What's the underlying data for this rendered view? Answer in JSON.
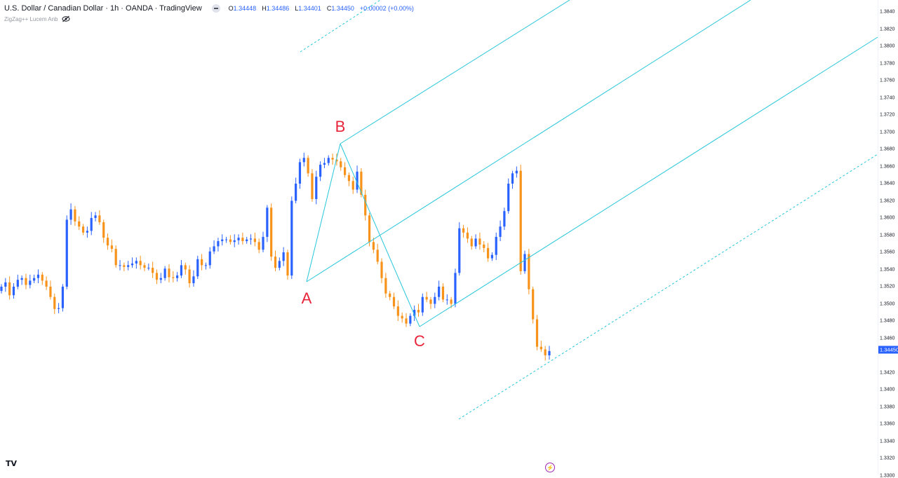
{
  "legend": {
    "title": "U.S. Dollar / Canadian Dollar · 1h · OANDA · TradingView",
    "open_key": "O",
    "open": "1.34448",
    "high_key": "H",
    "high": "1.34486",
    "low_key": "L",
    "low": "1.34401",
    "close_key": "C",
    "close": "1.34450",
    "change": "+0.00002 (+0.00%)"
  },
  "indicator": {
    "name": "ZigZag++ Lucem Anb"
  },
  "price_axis": {
    "labels": [
      "1.3840",
      "1.3820",
      "1.3800",
      "1.3780",
      "1.3760",
      "1.3740",
      "1.3720",
      "1.3700",
      "1.3680",
      "1.3660",
      "1.3640",
      "1.3620",
      "1.3600",
      "1.3580",
      "1.3560",
      "1.3540",
      "1.3520",
      "1.3500",
      "1.3480",
      "1.3460",
      "1.3420",
      "1.3400",
      "1.3380",
      "1.3360",
      "1.3340",
      "1.3320",
      "1.3300"
    ],
    "current_price": "1.34450"
  },
  "wave_labels": {
    "a": "A",
    "b": "B",
    "c": "C"
  },
  "branding": {
    "logo": "TV"
  },
  "colors": {
    "bull": "#2962ff",
    "bear": "#f7931a",
    "channel": "#26c6da",
    "wave_label": "#e8243a"
  },
  "chart_data": {
    "type": "candlestick",
    "symbol": "USDCAD",
    "interval": "1h",
    "ylim": [
      1.33,
      1.385
    ],
    "pivots": [
      {
        "label": "A",
        "price": 1.3525
      },
      {
        "label": "B",
        "price": 1.3688
      },
      {
        "label": "C",
        "price": 1.3474
      }
    ],
    "candles_close": [
      1.352,
      1.3525,
      1.351,
      1.352,
      1.3528,
      1.353,
      1.3522,
      1.3527,
      1.353,
      1.3534,
      1.3527,
      1.352,
      1.3508,
      1.3494,
      1.3495,
      1.352,
      1.3598,
      1.361,
      1.3596,
      1.359,
      1.3583,
      1.3585,
      1.36,
      1.3603,
      1.3595,
      1.3577,
      1.3568,
      1.3564,
      1.3545,
      1.3545,
      1.3543,
      1.3545,
      1.3547,
      1.355,
      1.3545,
      1.3542,
      1.3542,
      1.3536,
      1.3528,
      1.353,
      1.3541,
      1.3531,
      1.353,
      1.3533,
      1.3545,
      1.354,
      1.3524,
      1.3532,
      1.3552,
      1.3545,
      1.3545,
      1.3561,
      1.3567,
      1.3573,
      1.3575,
      1.3575,
      1.3572,
      1.3574,
      1.3577,
      1.3573,
      1.3575,
      1.3576,
      1.3572,
      1.3563,
      1.3578,
      1.3612,
      1.3555,
      1.3542,
      1.355,
      1.356,
      1.3533,
      1.362,
      1.364,
      1.3665,
      1.367,
      1.3652,
      1.3622,
      1.3648,
      1.3662,
      1.3664,
      1.367,
      1.3668,
      1.3666,
      1.3659,
      1.365,
      1.3643,
      1.3633,
      1.3654,
      1.3627,
      1.3603,
      1.3572,
      1.3563,
      1.3549,
      1.353,
      1.3512,
      1.3508,
      1.3497,
      1.3486,
      1.3483,
      1.3477,
      1.3486,
      1.3493,
      1.349,
      1.3508,
      1.3505,
      1.35,
      1.3508,
      1.352,
      1.3505,
      1.3505,
      1.35,
      1.3536,
      1.3588,
      1.3583,
      1.3576,
      1.3567,
      1.3576,
      1.3569,
      1.3565,
      1.3553,
      1.3557,
      1.3578,
      1.359,
      1.3608,
      1.364,
      1.3652,
      1.3655,
      1.3538,
      1.3558,
      1.3517,
      1.3482,
      1.345,
      1.3447,
      1.344,
      1.3445
    ]
  }
}
